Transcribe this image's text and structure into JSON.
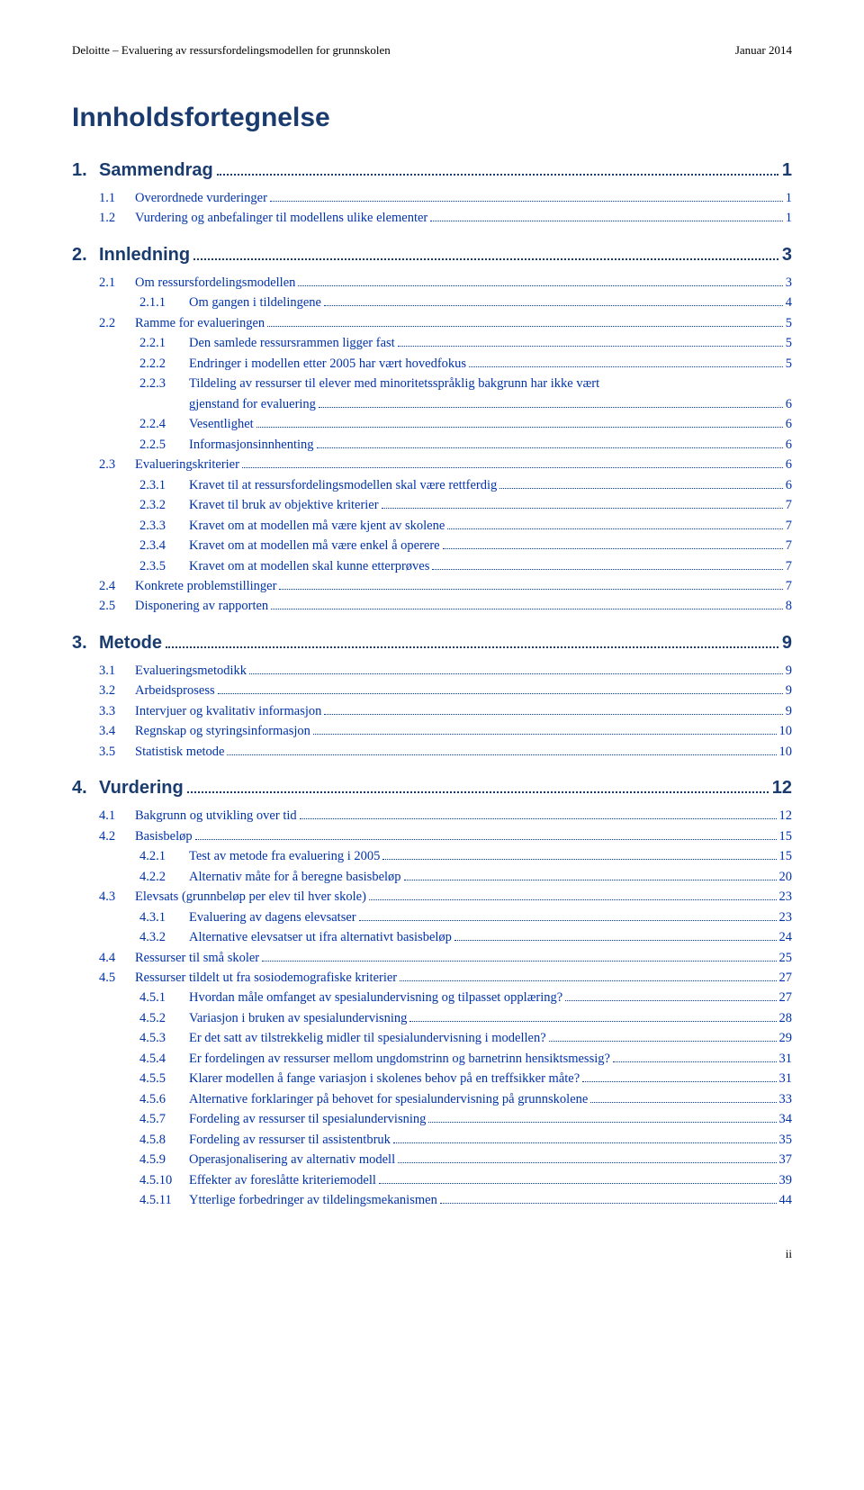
{
  "header": {
    "left": "Deloitte – Evaluering av ressursfordelingsmodellen for grunnskolen",
    "right": "Januar 2014"
  },
  "toc_title": "Innholdsfortegnelse",
  "sections": [
    {
      "num": "1.",
      "label": "Sammendrag",
      "page": "1",
      "subs": [
        {
          "num": "1.1",
          "label": "Overordnede vurderinger",
          "page": "1"
        },
        {
          "num": "1.2",
          "label": "Vurdering og anbefalinger til modellens ulike elementer",
          "page": "1"
        }
      ]
    },
    {
      "num": "2.",
      "label": "Innledning",
      "page": "3",
      "subs": [
        {
          "num": "2.1",
          "label": "Om ressursfordelingsmodellen",
          "page": "3",
          "subsubs": [
            {
              "num": "2.1.1",
              "label": "Om gangen i tildelingene",
              "page": "4"
            }
          ]
        },
        {
          "num": "2.2",
          "label": "Ramme for evalueringen",
          "page": "5",
          "subsubs": [
            {
              "num": "2.2.1",
              "label": "Den samlede ressursrammen ligger fast",
              "page": "5"
            },
            {
              "num": "2.2.2",
              "label": "Endringer i modellen etter 2005 har vært hovedfokus",
              "page": "5"
            },
            {
              "num": "2.2.3",
              "multiline": true,
              "line1": "Tildeling av ressurser til elever med minoritetsspråklig bakgrunn har ikke vært",
              "line2": "gjenstand for evaluering",
              "page": "6"
            },
            {
              "num": "2.2.4",
              "label": "Vesentlighet",
              "page": "6"
            },
            {
              "num": "2.2.5",
              "label": "Informasjonsinnhenting",
              "page": "6"
            }
          ]
        },
        {
          "num": "2.3",
          "label": "Evalueringskriterier",
          "page": "6",
          "subsubs": [
            {
              "num": "2.3.1",
              "label": "Kravet til at ressursfordelingsmodellen skal være rettferdig",
              "page": "6"
            },
            {
              "num": "2.3.2",
              "label": "Kravet til bruk av objektive kriterier",
              "page": "7"
            },
            {
              "num": "2.3.3",
              "label": "Kravet om at modellen må være kjent av skolene",
              "page": "7"
            },
            {
              "num": "2.3.4",
              "label": "Kravet om at modellen må være enkel å operere",
              "page": "7"
            },
            {
              "num": "2.3.5",
              "label": "Kravet om at modellen skal kunne etterprøves",
              "page": "7"
            }
          ]
        },
        {
          "num": "2.4",
          "label": "Konkrete problemstillinger",
          "page": "7"
        },
        {
          "num": "2.5",
          "label": "Disponering av rapporten",
          "page": "8"
        }
      ]
    },
    {
      "num": "3.",
      "label": "Metode",
      "page": "9",
      "subs": [
        {
          "num": "3.1",
          "label": "Evalueringsmetodikk",
          "page": "9"
        },
        {
          "num": "3.2",
          "label": "Arbeidsprosess",
          "page": "9"
        },
        {
          "num": "3.3",
          "label": "Intervjuer og kvalitativ informasjon",
          "page": "9"
        },
        {
          "num": "3.4",
          "label": "Regnskap og styringsinformasjon",
          "page": "10"
        },
        {
          "num": "3.5",
          "label": "Statistisk metode",
          "page": "10"
        }
      ]
    },
    {
      "num": "4.",
      "label": "Vurdering",
      "page": "12",
      "subs": [
        {
          "num": "4.1",
          "label": "Bakgrunn og utvikling over tid",
          "page": "12"
        },
        {
          "num": "4.2",
          "label": "Basisbeløp",
          "page": "15",
          "subsubs": [
            {
              "num": "4.2.1",
              "label": "Test av metode fra evaluering i 2005",
              "page": "15"
            },
            {
              "num": "4.2.2",
              "label": "Alternativ måte for å beregne basisbeløp",
              "page": "20"
            }
          ]
        },
        {
          "num": "4.3",
          "label": "Elevsats (grunnbeløp per elev til hver skole)",
          "page": "23",
          "subsubs": [
            {
              "num": "4.3.1",
              "label": "Evaluering av dagens elevsatser",
              "page": "23"
            },
            {
              "num": "4.3.2",
              "label": "Alternative elevsatser ut ifra alternativt basisbeløp",
              "page": "24"
            }
          ]
        },
        {
          "num": "4.4",
          "label": "Ressurser til små skoler",
          "page": "25"
        },
        {
          "num": "4.5",
          "label": "Ressurser tildelt ut fra sosiodemografiske kriterier",
          "page": "27",
          "subsubs": [
            {
              "num": "4.5.1",
              "label": "Hvordan måle omfanget av spesialundervisning og tilpasset opplæring?",
              "page": "27"
            },
            {
              "num": "4.5.2",
              "label": "Variasjon i bruken av spesialundervisning",
              "page": "28"
            },
            {
              "num": "4.5.3",
              "label": "Er det satt av tilstrekkelig midler til spesialundervisning i modellen?",
              "page": "29"
            },
            {
              "num": "4.5.4",
              "label": "Er fordelingen av ressurser mellom ungdomstrinn og barnetrinn hensiktsmessig?",
              "page": "31"
            },
            {
              "num": "4.5.5",
              "label": "Klarer modellen å fange variasjon i skolenes behov på en treffsikker måte?",
              "page": "31"
            },
            {
              "num": "4.5.6",
              "label": "Alternative forklaringer på behovet for spesialundervisning på grunnskolene",
              "page": "33"
            },
            {
              "num": "4.5.7",
              "label": "Fordeling av ressurser til spesialundervisning",
              "page": "34"
            },
            {
              "num": "4.5.8",
              "label": "Fordeling av ressurser til assistentbruk",
              "page": "35"
            },
            {
              "num": "4.5.9",
              "label": "Operasjonalisering av alternativ modell",
              "page": "37"
            },
            {
              "num": "4.5.10",
              "label": "Effekter av foreslåtte kriteriemodell",
              "page": "39"
            },
            {
              "num": "4.5.11",
              "label": "Ytterlige forbedringer av tildelingsmekanismen",
              "page": "44"
            }
          ]
        }
      ]
    }
  ],
  "footer_page": "ii"
}
